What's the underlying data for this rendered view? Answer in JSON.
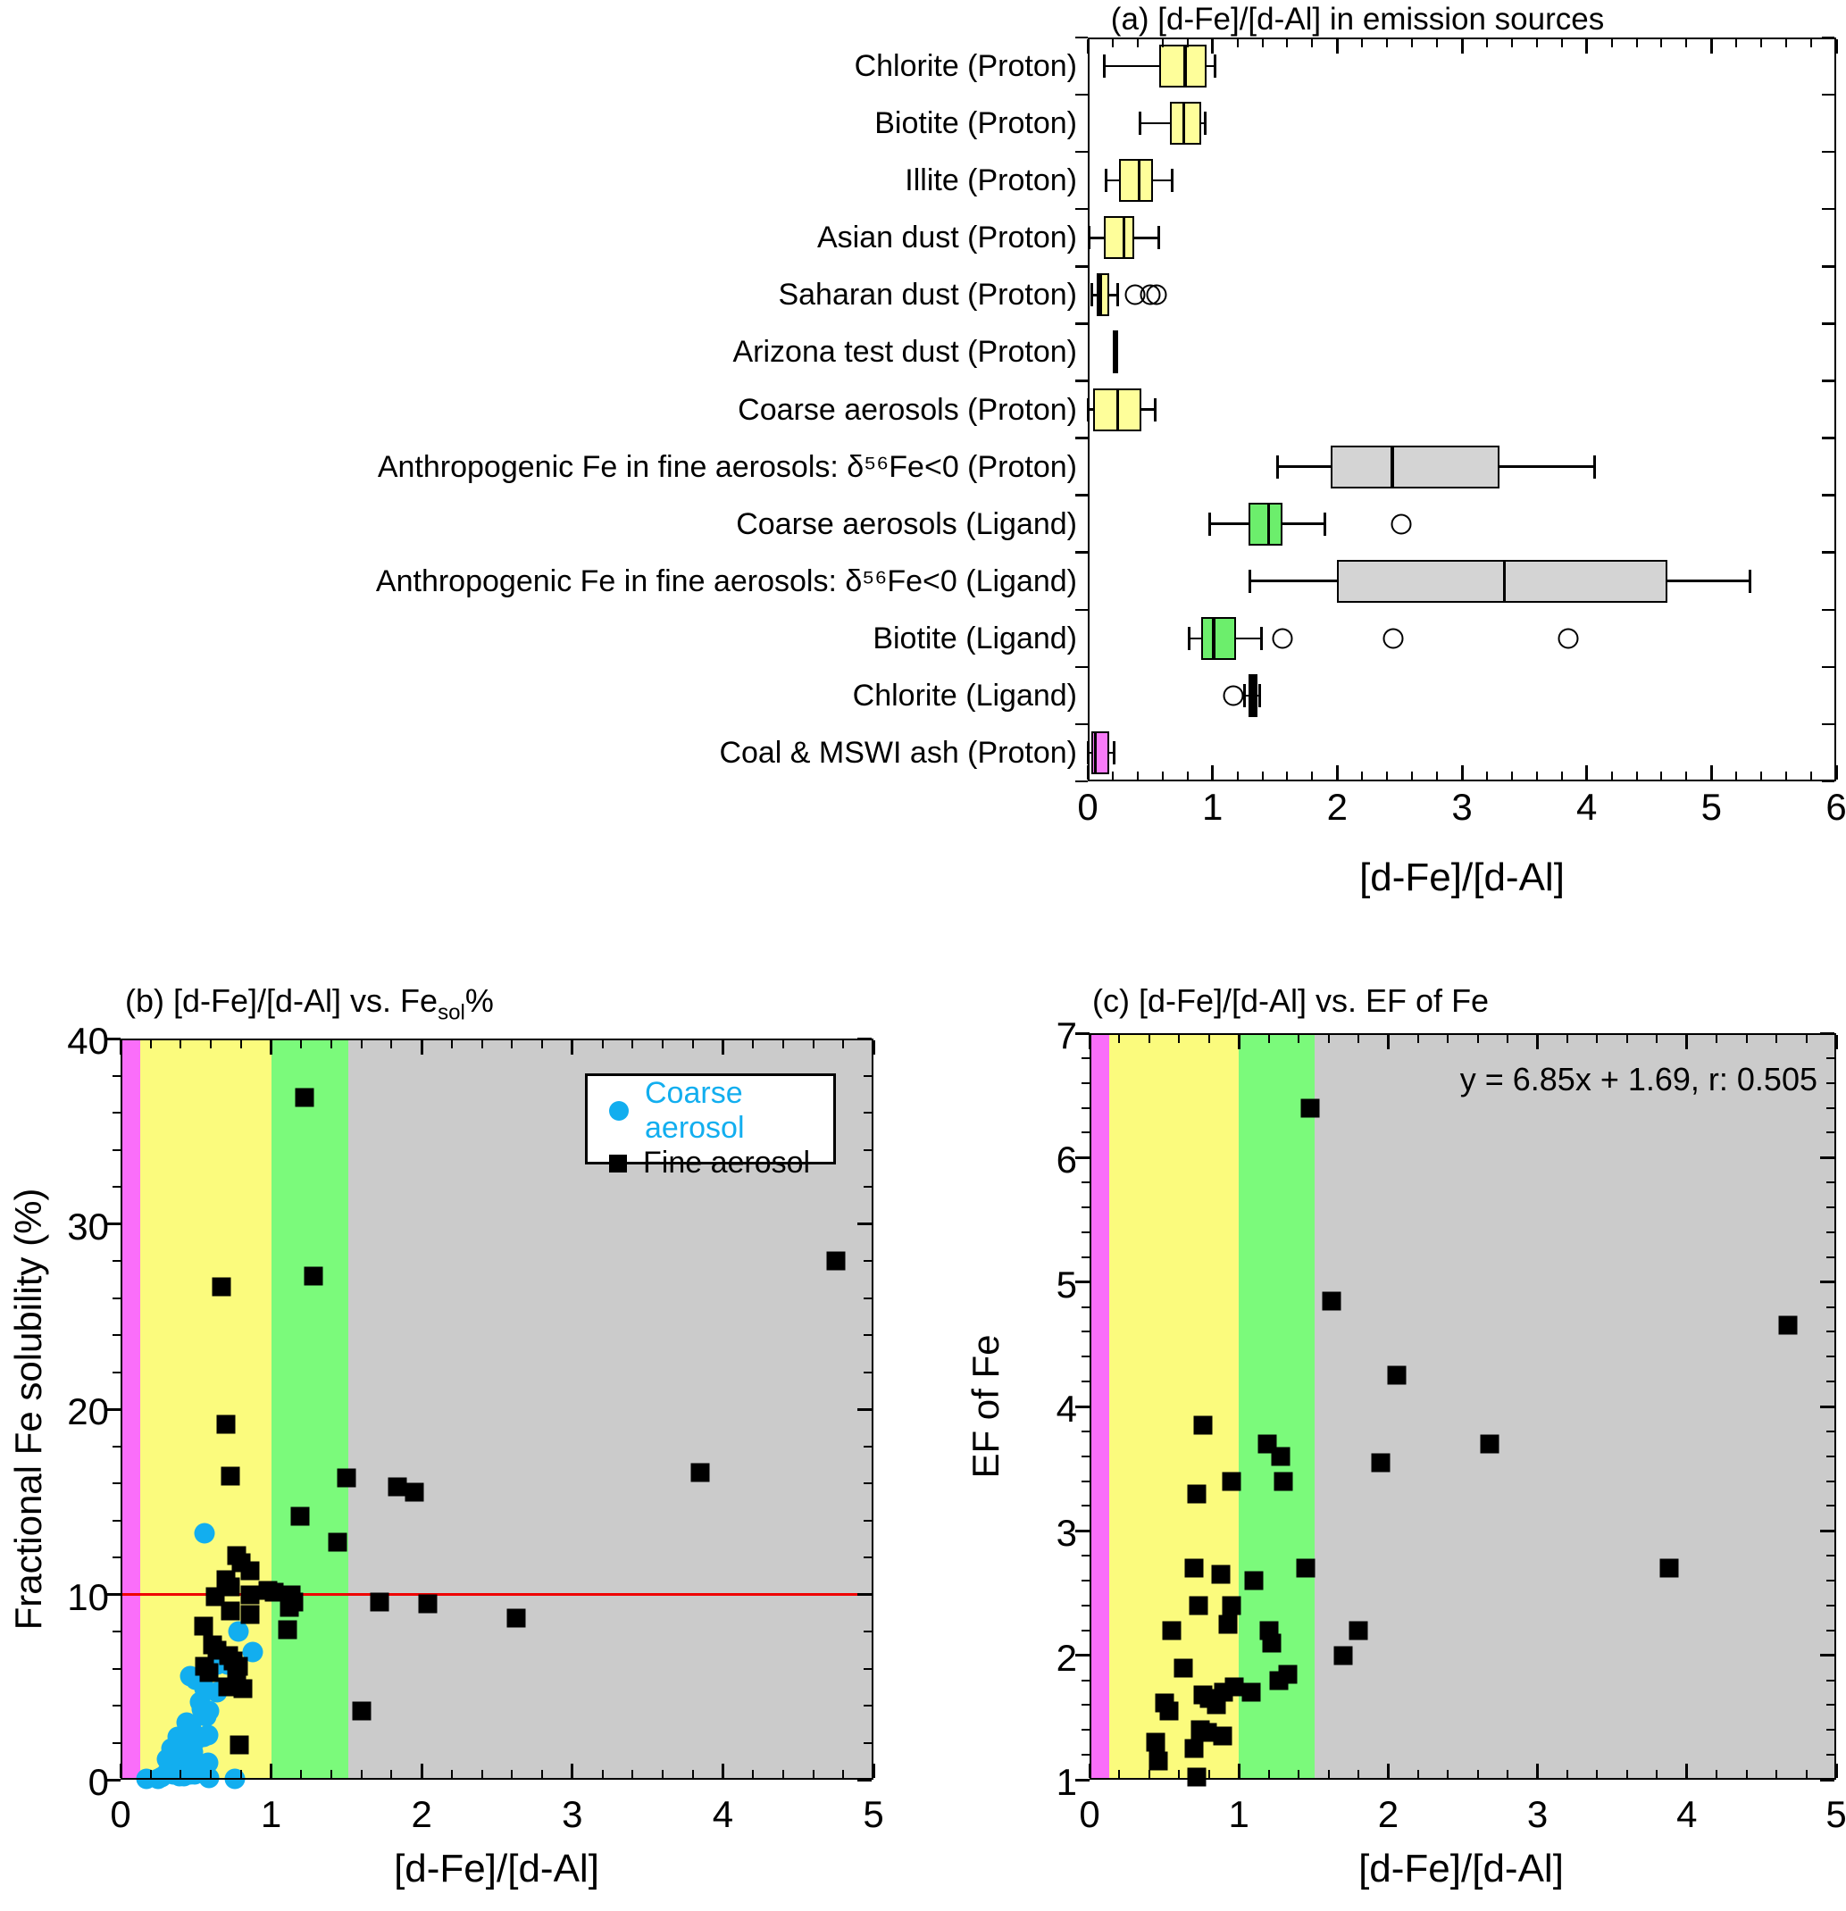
{
  "chart_data": [
    {
      "id": "panel-a",
      "type": "boxplot",
      "orientation": "horizontal",
      "title": "(a) [d-Fe]/[d-Al] in emission sources",
      "xlabel": "[d-Fe]/[d-Al]",
      "xlim": [
        0,
        6
      ],
      "xticks": [
        0,
        1,
        2,
        3,
        4,
        5,
        6
      ],
      "x_minor_step": 0.2,
      "rows": [
        {
          "label": "Chlorite (Proton)",
          "color": "#FEFE9A",
          "low": 0.13,
          "q1": 0.57,
          "median": 0.78,
          "q3": 0.95,
          "high": 1.02,
          "outliers": []
        },
        {
          "label": "Biotite (Proton)",
          "color": "#FEFE9A",
          "low": 0.42,
          "q1": 0.66,
          "median": 0.77,
          "q3": 0.91,
          "high": 0.94,
          "outliers": []
        },
        {
          "label": "Illite (Proton)",
          "color": "#FEFE9A",
          "low": 0.15,
          "q1": 0.25,
          "median": 0.41,
          "q3": 0.52,
          "high": 0.68,
          "outliers": []
        },
        {
          "label": "Asian dust (Proton)",
          "color": "#FEFE9A",
          "low": 0.01,
          "q1": 0.13,
          "median": 0.29,
          "q3": 0.37,
          "high": 0.57,
          "outliers": []
        },
        {
          "label": "Saharan dust (Proton)",
          "color": "#FEFE9A",
          "low": 0.03,
          "q1": 0.07,
          "median": 0.1,
          "q3": 0.17,
          "high": 0.24,
          "outliers": [
            0.38,
            0.5,
            0.55
          ]
        },
        {
          "label": "Arizona test dust (Proton)",
          "color": "#000000",
          "low": 0.2,
          "q1": 0.2,
          "median": 0.22,
          "q3": 0.24,
          "high": 0.24,
          "outliers": []
        },
        {
          "label": "Coarse aerosols (Proton)",
          "color": "#FEFE9A",
          "low": 0.0,
          "q1": 0.04,
          "median": 0.24,
          "q3": 0.43,
          "high": 0.54,
          "outliers": []
        },
        {
          "label": "Anthropogenic Fe in fine aerosols: δ⁵⁶Fe<0 (Proton)",
          "color": "#D4D4D4",
          "low": 1.52,
          "q1": 1.95,
          "median": 2.44,
          "q3": 3.3,
          "high": 4.06,
          "outliers": []
        },
        {
          "label": "Coarse aerosols (Ligand)",
          "color": "#6CEE6C",
          "low": 0.98,
          "q1": 1.29,
          "median": 1.45,
          "q3": 1.56,
          "high": 1.9,
          "outliers": [
            2.51
          ]
        },
        {
          "label": "Anthropogenic Fe in fine aerosols: δ⁵⁶Fe<0 (Ligand)",
          "color": "#D4D4D4",
          "low": 1.3,
          "q1": 2.0,
          "median": 3.34,
          "q3": 4.65,
          "high": 5.31,
          "outliers": []
        },
        {
          "label": "Biotite (Ligand)",
          "color": "#6CEE6C",
          "low": 0.81,
          "q1": 0.91,
          "median": 1.01,
          "q3": 1.19,
          "high": 1.39,
          "outliers": [
            1.56,
            2.45,
            3.85
          ]
        },
        {
          "label": "Chlorite (Ligand)",
          "color": "#000000",
          "low": 1.26,
          "q1": 1.29,
          "median": 1.32,
          "q3": 1.36,
          "high": 1.38,
          "outliers": [
            1.17
          ]
        },
        {
          "label": "Coal & MSWI ash (Proton)",
          "color": "#F97AF9",
          "low": 0.0,
          "q1": 0.03,
          "median": 0.06,
          "q3": 0.17,
          "high": 0.21,
          "outliers": []
        }
      ]
    },
    {
      "id": "panel-b",
      "type": "scatter",
      "title_prefix": "(b) [d-Fe]/[d-Al] vs. Fe",
      "title_sub": "sol",
      "title_suffix": "%",
      "xlabel": "[d-Fe]/[d-Al]",
      "ylabel": "Fractional Fe solubility (%)",
      "xlim": [
        0,
        5
      ],
      "ylim": [
        0,
        40
      ],
      "xticks": [
        0,
        1,
        2,
        3,
        4,
        5
      ],
      "yticks": [
        0,
        10,
        20,
        30,
        40
      ],
      "x_minor_step": 0.2,
      "y_minor_step": 2,
      "bands": [
        {
          "from": 0,
          "to": 0.13,
          "color": "#FA6EFA"
        },
        {
          "from": 0.13,
          "to": 1.0,
          "color": "#FBFB7D"
        },
        {
          "from": 1.0,
          "to": 1.51,
          "color": "#7BFA7B"
        },
        {
          "from": 1.51,
          "to": 5,
          "color": "#CBCBCB"
        }
      ],
      "hline": {
        "y": 10,
        "color": "#EF0000"
      },
      "legend": [
        {
          "label": "Coarse aerosol",
          "marker": "circle",
          "color": "#12AEEF"
        },
        {
          "label": "Fine aerosol",
          "marker": "square",
          "color": "#000000"
        }
      ],
      "series": [
        {
          "name": "Coarse aerosol",
          "marker": "circle",
          "color": "#12AEEF",
          "points": [
            [
              0.56,
              13.3
            ],
            [
              0.78,
              8.0
            ],
            [
              0.88,
              6.9
            ],
            [
              0.64,
              6.2
            ],
            [
              0.71,
              6.2
            ],
            [
              0.46,
              5.6
            ],
            [
              0.5,
              5.4
            ],
            [
              0.56,
              4.9
            ],
            [
              0.64,
              4.7
            ],
            [
              0.53,
              4.2
            ],
            [
              0.54,
              3.8
            ],
            [
              0.59,
              3.7
            ],
            [
              0.57,
              3.4
            ],
            [
              0.44,
              3.1
            ],
            [
              0.47,
              3.0
            ],
            [
              0.38,
              2.3
            ],
            [
              0.42,
              2.0
            ],
            [
              0.5,
              2.1
            ],
            [
              0.55,
              2.3
            ],
            [
              0.58,
              2.4
            ],
            [
              0.34,
              1.7
            ],
            [
              0.37,
              1.6
            ],
            [
              0.41,
              1.4
            ],
            [
              0.45,
              1.4
            ],
            [
              0.48,
              1.5
            ],
            [
              0.31,
              1.1
            ],
            [
              0.35,
              1.2
            ],
            [
              0.4,
              1.0
            ],
            [
              0.43,
              0.9
            ],
            [
              0.34,
              0.7
            ],
            [
              0.38,
              0.6
            ],
            [
              0.41,
              0.6
            ],
            [
              0.45,
              0.6
            ],
            [
              0.48,
              0.6
            ],
            [
              0.31,
              0.4
            ],
            [
              0.35,
              0.3
            ],
            [
              0.39,
              0.2
            ],
            [
              0.42,
              0.2
            ],
            [
              0.46,
              0.3
            ],
            [
              0.49,
              0.3
            ],
            [
              0.53,
              0.5
            ],
            [
              0.58,
              0.9
            ],
            [
              0.27,
              0.15
            ],
            [
              0.25,
              0.05
            ],
            [
              0.59,
              0.1
            ],
            [
              0.76,
              0.05
            ],
            [
              0.17,
              0.05
            ]
          ]
        },
        {
          "name": "Fine aerosol",
          "marker": "square",
          "color": "#000000",
          "points": [
            [
              1.22,
              36.8
            ],
            [
              0.67,
              26.6
            ],
            [
              1.28,
              27.2
            ],
            [
              4.75,
              28.0
            ],
            [
              0.7,
              19.2
            ],
            [
              0.73,
              16.4
            ],
            [
              1.5,
              16.3
            ],
            [
              1.84,
              15.8
            ],
            [
              1.95,
              15.5
            ],
            [
              3.85,
              16.6
            ],
            [
              1.19,
              14.2
            ],
            [
              1.44,
              12.8
            ],
            [
              0.77,
              12.1
            ],
            [
              0.8,
              11.7
            ],
            [
              0.86,
              11.3
            ],
            [
              0.7,
              10.8
            ],
            [
              0.73,
              10.4
            ],
            [
              0.63,
              9.9
            ],
            [
              0.86,
              10.0
            ],
            [
              0.98,
              10.2
            ],
            [
              1.02,
              10.1
            ],
            [
              1.13,
              10.0
            ],
            [
              1.15,
              9.6
            ],
            [
              1.12,
              9.3
            ],
            [
              0.73,
              9.1
            ],
            [
              0.86,
              8.9
            ],
            [
              0.55,
              8.3
            ],
            [
              1.11,
              8.1
            ],
            [
              1.72,
              9.6
            ],
            [
              2.04,
              9.5
            ],
            [
              2.63,
              8.7
            ],
            [
              0.61,
              7.3
            ],
            [
              0.64,
              7.0
            ],
            [
              0.72,
              6.7
            ],
            [
              0.75,
              6.4
            ],
            [
              0.78,
              6.1
            ],
            [
              0.56,
              6.1
            ],
            [
              0.59,
              5.8
            ],
            [
              0.77,
              5.5
            ],
            [
              0.71,
              5.0
            ],
            [
              0.81,
              4.9
            ],
            [
              1.6,
              3.7
            ],
            [
              0.79,
              1.9
            ]
          ]
        }
      ]
    },
    {
      "id": "panel-c",
      "type": "scatter",
      "title": "(c) [d-Fe]/[d-Al] vs. EF of Fe",
      "xlabel": "[d-Fe]/[d-Al]",
      "ylabel": "EF of Fe",
      "annotation": "y = 6.85x + 1.69, r: 0.505",
      "xlim": [
        0,
        5
      ],
      "ylim": [
        1,
        7
      ],
      "xticks": [
        0,
        1,
        2,
        3,
        4,
        5
      ],
      "yticks": [
        1,
        2,
        3,
        4,
        5,
        6,
        7
      ],
      "x_minor_step": 0.2,
      "y_minor_step": 0.2,
      "bands": [
        {
          "from": 0,
          "to": 0.13,
          "color": "#FA6EFA"
        },
        {
          "from": 0.13,
          "to": 1.0,
          "color": "#FBFB7D"
        },
        {
          "from": 1.0,
          "to": 1.51,
          "color": "#7BFA7B"
        },
        {
          "from": 1.51,
          "to": 5,
          "color": "#CBCBCB"
        }
      ],
      "series": [
        {
          "name": "Fine aerosol",
          "marker": "square",
          "color": "#000000",
          "points": [
            [
              1.48,
              6.4
            ],
            [
              1.62,
              4.85
            ],
            [
              4.68,
              4.65
            ],
            [
              2.06,
              4.25
            ],
            [
              0.76,
              3.85
            ],
            [
              1.19,
              3.7
            ],
            [
              2.68,
              3.7
            ],
            [
              1.28,
              3.6
            ],
            [
              1.3,
              3.4
            ],
            [
              0.95,
              3.4
            ],
            [
              0.72,
              3.3
            ],
            [
              1.95,
              3.55
            ],
            [
              0.7,
              2.7
            ],
            [
              0.88,
              2.65
            ],
            [
              1.1,
              2.6
            ],
            [
              1.45,
              2.7
            ],
            [
              3.88,
              2.7
            ],
            [
              0.73,
              2.4
            ],
            [
              0.95,
              2.4
            ],
            [
              0.93,
              2.25
            ],
            [
              0.55,
              2.2
            ],
            [
              1.8,
              2.2
            ],
            [
              1.2,
              2.2
            ],
            [
              1.22,
              2.1
            ],
            [
              1.7,
              2.0
            ],
            [
              0.63,
              1.9
            ],
            [
              1.33,
              1.85
            ],
            [
              1.27,
              1.8
            ],
            [
              1.08,
              1.7
            ],
            [
              0.97,
              1.75
            ],
            [
              0.9,
              1.7
            ],
            [
              0.76,
              1.68
            ],
            [
              0.8,
              1.65
            ],
            [
              0.85,
              1.6
            ],
            [
              0.5,
              1.62
            ],
            [
              0.53,
              1.55
            ],
            [
              0.74,
              1.4
            ],
            [
              0.79,
              1.38
            ],
            [
              0.89,
              1.35
            ],
            [
              0.7,
              1.25
            ],
            [
              0.44,
              1.3
            ],
            [
              0.46,
              1.15
            ],
            [
              0.72,
              1.02
            ]
          ]
        }
      ]
    }
  ]
}
